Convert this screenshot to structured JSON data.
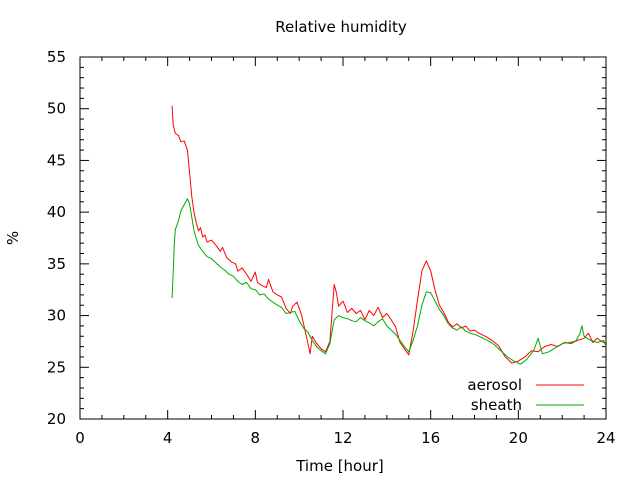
{
  "chart_data": {
    "type": "line",
    "title": "Relative humidity",
    "xlabel": "Time [hour]",
    "ylabel": "%",
    "xlim": [
      0,
      24
    ],
    "ylim": [
      20,
      55
    ],
    "x_ticks": [
      0,
      4,
      8,
      12,
      16,
      20,
      24
    ],
    "x_tick_labels": [
      "0",
      "4",
      "8",
      "12",
      "16",
      "20",
      "24"
    ],
    "y_ticks": [
      20,
      25,
      30,
      35,
      40,
      45,
      50,
      55
    ],
    "y_tick_labels": [
      "20",
      "25",
      "30",
      "35",
      "40",
      "45",
      "50",
      "55"
    ],
    "x_minor_step": 1,
    "y_minor_step": 1,
    "grid": false,
    "legend_position": "bottom-right",
    "series": [
      {
        "name": "aerosol",
        "color": "#ff0000",
        "points": [
          [
            4.2,
            50.3
          ],
          [
            4.25,
            48.5
          ],
          [
            4.35,
            47.6
          ],
          [
            4.5,
            47.4
          ],
          [
            4.6,
            46.8
          ],
          [
            4.75,
            46.9
          ],
          [
            4.9,
            46.0
          ],
          [
            5.0,
            43.8
          ],
          [
            5.1,
            41.5
          ],
          [
            5.2,
            40.0
          ],
          [
            5.3,
            39.0
          ],
          [
            5.4,
            38.2
          ],
          [
            5.5,
            38.5
          ],
          [
            5.6,
            37.6
          ],
          [
            5.7,
            37.8
          ],
          [
            5.8,
            37.1
          ],
          [
            6.0,
            37.3
          ],
          [
            6.2,
            36.8
          ],
          [
            6.4,
            36.2
          ],
          [
            6.5,
            36.6
          ],
          [
            6.7,
            35.6
          ],
          [
            6.9,
            35.2
          ],
          [
            7.1,
            35.0
          ],
          [
            7.2,
            34.3
          ],
          [
            7.4,
            34.6
          ],
          [
            7.6,
            34.0
          ],
          [
            7.8,
            33.3
          ],
          [
            8.0,
            34.2
          ],
          [
            8.1,
            33.2
          ],
          [
            8.3,
            32.9
          ],
          [
            8.5,
            32.7
          ],
          [
            8.6,
            33.5
          ],
          [
            8.8,
            32.3
          ],
          [
            9.0,
            32.0
          ],
          [
            9.2,
            31.8
          ],
          [
            9.4,
            30.7
          ],
          [
            9.6,
            30.2
          ],
          [
            9.7,
            30.9
          ],
          [
            9.9,
            31.3
          ],
          [
            10.1,
            30.1
          ],
          [
            10.3,
            28.3
          ],
          [
            10.5,
            26.3
          ],
          [
            10.6,
            28.0
          ],
          [
            10.8,
            27.3
          ],
          [
            11.0,
            26.8
          ],
          [
            11.2,
            26.5
          ],
          [
            11.4,
            27.5
          ],
          [
            11.6,
            33.0
          ],
          [
            11.7,
            32.2
          ],
          [
            11.8,
            30.9
          ],
          [
            12.0,
            31.4
          ],
          [
            12.2,
            30.3
          ],
          [
            12.4,
            30.7
          ],
          [
            12.6,
            30.2
          ],
          [
            12.8,
            30.5
          ],
          [
            13.0,
            29.6
          ],
          [
            13.2,
            30.5
          ],
          [
            13.4,
            30.0
          ],
          [
            13.6,
            30.8
          ],
          [
            13.8,
            29.8
          ],
          [
            14.0,
            30.2
          ],
          [
            14.2,
            29.6
          ],
          [
            14.4,
            28.9
          ],
          [
            14.6,
            27.4
          ],
          [
            14.8,
            26.8
          ],
          [
            15.0,
            26.2
          ],
          [
            15.2,
            28.5
          ],
          [
            15.4,
            31.5
          ],
          [
            15.6,
            34.3
          ],
          [
            15.8,
            35.3
          ],
          [
            16.0,
            34.3
          ],
          [
            16.2,
            32.5
          ],
          [
            16.4,
            31.0
          ],
          [
            16.6,
            30.3
          ],
          [
            16.8,
            29.4
          ],
          [
            17.0,
            28.9
          ],
          [
            17.2,
            29.2
          ],
          [
            17.4,
            28.8
          ],
          [
            17.6,
            29.0
          ],
          [
            17.8,
            28.5
          ],
          [
            18.0,
            28.6
          ],
          [
            18.2,
            28.3
          ],
          [
            18.5,
            28.0
          ],
          [
            18.8,
            27.6
          ],
          [
            19.1,
            27.1
          ],
          [
            19.4,
            26.0
          ],
          [
            19.7,
            25.4
          ],
          [
            20.0,
            25.6
          ],
          [
            20.3,
            26.0
          ],
          [
            20.6,
            26.6
          ],
          [
            20.9,
            26.5
          ],
          [
            21.2,
            27.0
          ],
          [
            21.5,
            27.2
          ],
          [
            21.8,
            27.0
          ],
          [
            22.1,
            27.4
          ],
          [
            22.4,
            27.3
          ],
          [
            22.7,
            27.6
          ],
          [
            23.0,
            27.8
          ],
          [
            23.2,
            28.3
          ],
          [
            23.4,
            27.4
          ],
          [
            23.6,
            27.8
          ],
          [
            23.8,
            27.5
          ],
          [
            24.0,
            27.3
          ]
        ]
      },
      {
        "name": "sheath",
        "color": "#00aa00",
        "points": [
          [
            4.2,
            31.7
          ],
          [
            4.25,
            34.0
          ],
          [
            4.3,
            36.7
          ],
          [
            4.35,
            38.3
          ],
          [
            4.5,
            39.2
          ],
          [
            4.6,
            40.1
          ],
          [
            4.75,
            40.7
          ],
          [
            4.9,
            41.3
          ],
          [
            5.0,
            40.8
          ],
          [
            5.1,
            39.5
          ],
          [
            5.2,
            38.2
          ],
          [
            5.3,
            37.5
          ],
          [
            5.4,
            36.8
          ],
          [
            5.6,
            36.2
          ],
          [
            5.8,
            35.7
          ],
          [
            6.0,
            35.5
          ],
          [
            6.2,
            35.1
          ],
          [
            6.4,
            34.7
          ],
          [
            6.6,
            34.4
          ],
          [
            6.8,
            34.0
          ],
          [
            7.0,
            33.8
          ],
          [
            7.2,
            33.3
          ],
          [
            7.4,
            33.0
          ],
          [
            7.6,
            33.2
          ],
          [
            7.8,
            32.6
          ],
          [
            8.0,
            32.5
          ],
          [
            8.2,
            32.0
          ],
          [
            8.4,
            32.1
          ],
          [
            8.6,
            31.6
          ],
          [
            8.8,
            31.3
          ],
          [
            9.0,
            31.0
          ],
          [
            9.2,
            30.8
          ],
          [
            9.4,
            30.2
          ],
          [
            9.6,
            30.3
          ],
          [
            9.8,
            30.4
          ],
          [
            10.0,
            29.5
          ],
          [
            10.2,
            28.8
          ],
          [
            10.4,
            28.4
          ],
          [
            10.6,
            27.6
          ],
          [
            10.8,
            27.0
          ],
          [
            11.0,
            26.6
          ],
          [
            11.2,
            26.3
          ],
          [
            11.4,
            27.3
          ],
          [
            11.6,
            29.6
          ],
          [
            11.8,
            30.0
          ],
          [
            12.0,
            29.8
          ],
          [
            12.2,
            29.7
          ],
          [
            12.4,
            29.5
          ],
          [
            12.6,
            29.4
          ],
          [
            12.8,
            29.8
          ],
          [
            13.0,
            29.5
          ],
          [
            13.2,
            29.3
          ],
          [
            13.4,
            29.0
          ],
          [
            13.6,
            29.4
          ],
          [
            13.8,
            29.7
          ],
          [
            14.0,
            29.0
          ],
          [
            14.2,
            28.6
          ],
          [
            14.4,
            28.2
          ],
          [
            14.6,
            27.6
          ],
          [
            14.8,
            27.0
          ],
          [
            15.0,
            26.5
          ],
          [
            15.2,
            27.6
          ],
          [
            15.4,
            29.0
          ],
          [
            15.6,
            31.0
          ],
          [
            15.8,
            32.3
          ],
          [
            16.0,
            32.2
          ],
          [
            16.2,
            31.4
          ],
          [
            16.4,
            30.6
          ],
          [
            16.6,
            30.0
          ],
          [
            16.8,
            29.2
          ],
          [
            17.0,
            28.8
          ],
          [
            17.2,
            28.6
          ],
          [
            17.4,
            28.9
          ],
          [
            17.6,
            28.5
          ],
          [
            17.8,
            28.3
          ],
          [
            18.0,
            28.2
          ],
          [
            18.3,
            27.9
          ],
          [
            18.6,
            27.6
          ],
          [
            18.9,
            27.2
          ],
          [
            19.2,
            26.6
          ],
          [
            19.5,
            26.0
          ],
          [
            19.8,
            25.6
          ],
          [
            20.1,
            25.3
          ],
          [
            20.4,
            25.8
          ],
          [
            20.7,
            26.6
          ],
          [
            20.9,
            27.8
          ],
          [
            21.1,
            26.3
          ],
          [
            21.4,
            26.5
          ],
          [
            21.7,
            26.9
          ],
          [
            22.0,
            27.3
          ],
          [
            22.3,
            27.4
          ],
          [
            22.6,
            27.5
          ],
          [
            22.8,
            28.2
          ],
          [
            22.9,
            29.0
          ],
          [
            23.0,
            28.0
          ],
          [
            23.3,
            27.6
          ],
          [
            23.6,
            27.4
          ],
          [
            23.9,
            27.6
          ],
          [
            24.0,
            27.0
          ]
        ]
      }
    ]
  }
}
